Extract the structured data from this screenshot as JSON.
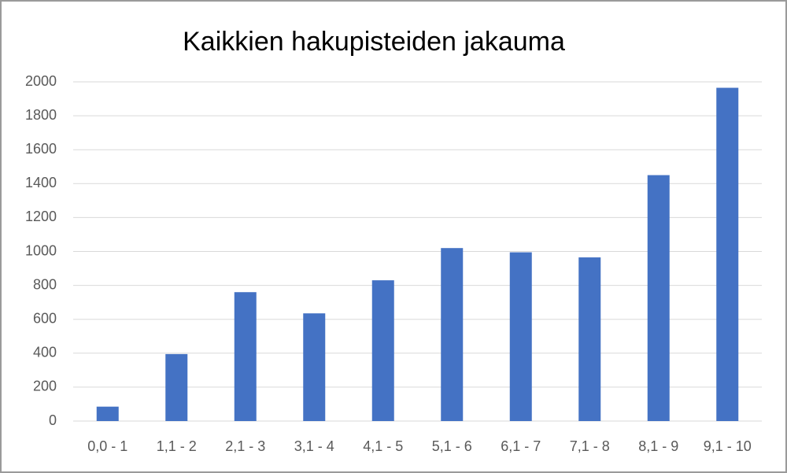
{
  "chart_data": {
    "type": "bar",
    "title": "Kaikkien hakupisteiden jakauma",
    "categories": [
      "0,0 - 1",
      "1,1 - 2",
      "2,1 - 3",
      "3,1 - 4",
      "4,1 - 5",
      "5,1 - 6",
      "6,1 - 7",
      "7,1 - 8",
      "8,1 - 9",
      "9,1 - 10"
    ],
    "values": [
      85,
      395,
      760,
      635,
      830,
      1020,
      995,
      965,
      1450,
      1965
    ],
    "color": "#4472c4",
    "ylim": [
      0,
      2000
    ],
    "yticks": [
      0,
      200,
      400,
      600,
      800,
      1000,
      1200,
      1400,
      1600,
      1800,
      2000
    ],
    "grid": true
  }
}
